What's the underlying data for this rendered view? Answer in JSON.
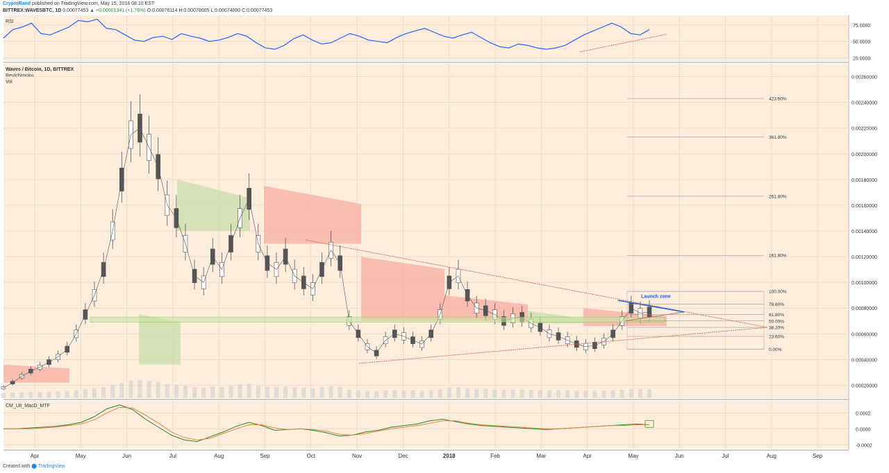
{
  "header": {
    "author": "CryptoRand",
    "published": "published on TradingView.com, May 15, 2018 08:10 EST",
    "symbol": "BITTREX:WAVESBTC, 1D",
    "price": "0.00077453",
    "change": "▲ +0.00001341 (+1.76%)",
    "ohlc": "O:0.00076114 H:0.00078005 L:0.00074000 C:0.00077453"
  },
  "footer": {
    "created_with": "Created with",
    "brand": "TradingView"
  },
  "colors": {
    "background": "#fdeddd",
    "rsi_line": "#2962ff",
    "candle": "#555555",
    "cloud_bear": "#f7a8a0",
    "cloud_bull": "#c5dca8",
    "macd_fast": "#2e7d32",
    "macd_slow": "#e08a3c",
    "trendline": "#d9534f",
    "launch_line": "#1e5fd9",
    "support_zone": "#c6e6a0"
  },
  "chart_data": [
    {
      "type": "line",
      "title": "RSI",
      "yticks": [
        "75.0000",
        "50.0000",
        "25.0000"
      ],
      "ylim": [
        20,
        90
      ],
      "series": [
        {
          "values": [
            55,
            68,
            72,
            78,
            62,
            60,
            66,
            72,
            82,
            80,
            84,
            70,
            68,
            60,
            52,
            50,
            56,
            58,
            53,
            62,
            58,
            55,
            50,
            52,
            56,
            62,
            58,
            48,
            40,
            38,
            44,
            54,
            60,
            52,
            46,
            48,
            55,
            62,
            58,
            52,
            50,
            48,
            56,
            62,
            66,
            70,
            64,
            58,
            55,
            60,
            64,
            56,
            48,
            42,
            40,
            46,
            44,
            40,
            38,
            40,
            44,
            52,
            60,
            66,
            72,
            78,
            72,
            62,
            60,
            68
          ]
        }
      ]
    },
    {
      "type": "line",
      "title": "Waves / Bitcoin, 1D, BITTREX",
      "indicators": [
        "RevIchimoku",
        "Vol"
      ],
      "yticks": [
        "0.00260000",
        "0.00240000",
        "0.00220000",
        "0.00200000",
        "0.00180000",
        "0.00160000",
        "0.00140000",
        "0.00120000",
        "0.00100000",
        "0.00080000",
        "0.00060000",
        "0.00040000",
        "0.00020000"
      ],
      "ylim": [
        0.0001,
        0.0027
      ],
      "fib_levels": [
        {
          "label": "423.60%",
          "value": 0.00243
        },
        {
          "label": "361.80%",
          "value": 0.00213
        },
        {
          "label": "261.80%",
          "value": 0.00167
        },
        {
          "label": "161.80%",
          "value": 0.00121
        },
        {
          "label": "100.00%",
          "value": 0.00093
        },
        {
          "label": "78.60%",
          "value": 0.00083
        },
        {
          "label": "61.80%",
          "value": 0.00075
        },
        {
          "label": "50.00%",
          "value": 0.0007
        },
        {
          "label": "38.20%",
          "value": 0.00065
        },
        {
          "label": "23.60%",
          "value": 0.00058
        },
        {
          "label": "0.00%",
          "value": 0.00048
        }
      ],
      "annotation": "Launch zone",
      "price": [
        0.00018,
        0.00022,
        0.00027,
        0.00031,
        0.00034,
        0.00038,
        0.00042,
        0.00048,
        0.0006,
        0.00075,
        0.0009,
        0.0011,
        0.0014,
        0.0018,
        0.00215,
        0.0022,
        0.00205,
        0.0019,
        0.0016,
        0.0015,
        0.0013,
        0.00105,
        0.001,
        0.0012,
        0.0011,
        0.0013,
        0.0015,
        0.00165,
        0.0013,
        0.00115,
        0.0011,
        0.0012,
        0.00105,
        0.001,
        0.00095,
        0.0011,
        0.00125,
        0.00115,
        0.0007,
        0.0006,
        0.0005,
        0.00045,
        0.00055,
        0.0006,
        0.00058,
        0.00055,
        0.00052,
        0.0006,
        0.00075,
        0.001,
        0.00105,
        0.0009,
        0.0008,
        0.00078,
        0.00075,
        0.0007,
        0.00072,
        0.00073,
        0.00068,
        0.00065,
        0.0006,
        0.00058,
        0.00055,
        0.00052,
        0.0005,
        0.00051,
        0.00054,
        0.0006,
        0.0007,
        0.0008,
        0.00076,
        0.00077
      ]
    },
    {
      "type": "line",
      "title": "CM_Ult_MacD_MTF",
      "yticks": [
        "0.0002",
        "0.0000",
        "-0.0002"
      ],
      "ylim": [
        -0.00025,
        0.00035
      ],
      "series": [
        {
          "values": [
            0,
            0,
            1e-05,
            2e-05,
            3e-05,
            5e-05,
            8e-05,
            0.00015,
            0.00025,
            0.0003,
            0.00024,
            0.00012,
            2e-05,
            -8e-05,
            -0.00014,
            -0.00016,
            -0.0001,
            -4e-05,
            3e-05,
            8e-05,
            4e-05,
            -2e-05,
            -1e-05,
            0.0,
            -2e-05,
            -5e-05,
            -9e-05,
            -8e-05,
            -4e-05,
            -2e-05,
            2e-05,
            4e-05,
            6e-05,
            0.0001,
            0.00012,
            9e-05,
            6e-05,
            4e-05,
            3e-05,
            2e-05,
            1e-05,
            0.0,
            -1e-05,
            0.0,
            1e-05,
            2e-05,
            3e-05,
            4e-05,
            5e-05,
            6e-05,
            5e-05
          ]
        },
        {
          "values": [
            0,
            0,
            0.0,
            1e-05,
            2e-05,
            4e-05,
            6e-05,
            0.00011,
            0.0002,
            0.00027,
            0.00026,
            0.00017,
            7e-05,
            -4e-05,
            -0.00011,
            -0.00014,
            -0.00012,
            -6e-05,
            0.0,
            5e-05,
            5e-05,
            1e-05,
            -1e-05,
            0.0,
            -1e-05,
            -3e-05,
            -7e-05,
            -8e-05,
            -6e-05,
            -3e-05,
            0.0,
            2e-05,
            4e-05,
            7e-05,
            0.0001,
            0.0001,
            7e-05,
            5e-05,
            4e-05,
            3e-05,
            2e-05,
            1e-05,
            0.0,
            0.0,
            1e-05,
            2e-05,
            3e-05,
            4e-05,
            4e-05,
            5e-05,
            5e-05
          ]
        }
      ]
    }
  ],
  "xaxis": [
    "Apr",
    "May",
    "Jun",
    "Jul",
    "Aug",
    "Sep",
    "Oct",
    "Nov",
    "Dec",
    "2018",
    "Feb",
    "Mar",
    "Apr",
    "May",
    "Jun",
    "Jul",
    "Aug",
    "Sep"
  ]
}
